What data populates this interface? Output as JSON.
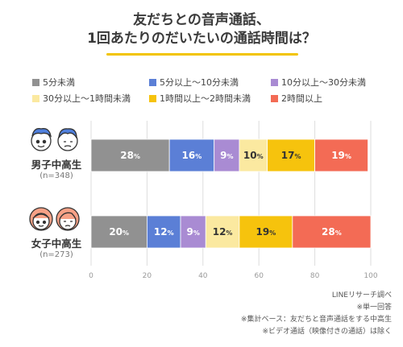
{
  "title_lines": [
    "友だちとの音声通話、",
    "1回あたりのだいたいの通話時間は？"
  ],
  "chart_data": {
    "type": "bar",
    "orientation": "horizontal",
    "stacked": true,
    "categories": [
      "男子中高生",
      "女子中高生"
    ],
    "sample_sizes": [
      "(n=348)",
      "(n=273)"
    ],
    "series": [
      {
        "name": "5分未満",
        "color": "#919191",
        "values": [
          28,
          20
        ]
      },
      {
        "name": "5分以上～10分未満",
        "color": "#5b7fd6",
        "values": [
          16,
          12
        ]
      },
      {
        "name": "10分以上～30分未満",
        "color": "#a98bd3",
        "values": [
          9,
          9
        ]
      },
      {
        "name": "30分以上～1時間未満",
        "color": "#fbe9a0",
        "values": [
          10,
          12
        ]
      },
      {
        "name": "1時間以上～2時間未満",
        "color": "#f6c30d",
        "values": [
          17,
          19
        ]
      },
      {
        "name": "2時間以上",
        "color": "#f36b55",
        "values": [
          19,
          28
        ]
      }
    ],
    "value_suffix": "%",
    "xlim": [
      0,
      100
    ],
    "xticks": [
      0,
      20,
      40,
      60,
      80,
      100
    ],
    "grid": true,
    "legend_position": "top"
  },
  "notes": [
    "LINEリサーチ調べ",
    "※単一回答",
    "※集計ベース：友だちと音声通話をする中高生",
    "※ビデオ通話（映像付きの通話）は除く"
  ]
}
